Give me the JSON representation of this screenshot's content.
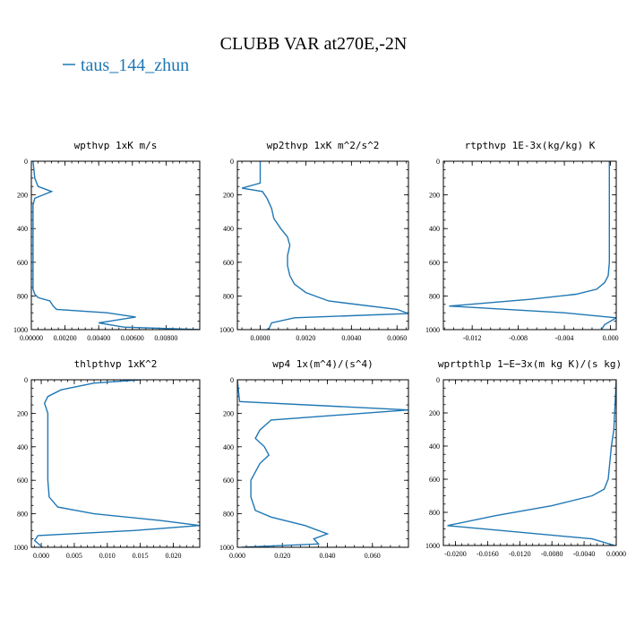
{
  "figure_title": "CLUBB VAR at270E,-2N",
  "legend_label": "taus_144_zhun",
  "colors": {
    "series": "#1f77b4",
    "axes": "#000000"
  },
  "chart_data": [
    {
      "type": "line",
      "title": "wpthvp  1xK m/s",
      "xlim": [
        0,
        0.01
      ],
      "ylim": [
        1000,
        0
      ],
      "x_ticks": [
        0,
        0.002,
        0.004,
        0.006,
        0.008
      ],
      "x_tick_labels": [
        "0.00000",
        "0.00200",
        "0.00400",
        "0.00600",
        "0.00800"
      ],
      "y_ticks": [
        0,
        200,
        400,
        600,
        800,
        1000
      ],
      "y_tick_labels": [
        "0",
        "200",
        "400",
        "600",
        "800",
        "1000"
      ],
      "series": [
        {
          "x": [
            0.0001,
            0.0002,
            0.0004,
            0.0012,
            0.0002,
            0.0001,
            0.0001,
            0.0001,
            0.0001,
            0.0001,
            0.0002,
            0.0004,
            0.0011,
            0.0013,
            0.0015,
            0.0045,
            0.0062,
            0.004,
            0.0055,
            0.01
          ],
          "y": [
            0,
            100,
            150,
            180,
            220,
            260,
            400,
            600,
            700,
            760,
            790,
            810,
            830,
            860,
            880,
            900,
            925,
            960,
            985,
            1000
          ]
        }
      ]
    },
    {
      "type": "line",
      "title": "wp2thvp  1xK m^2/s^2",
      "xlim": [
        -0.001,
        0.0065
      ],
      "ylim": [
        1000,
        0
      ],
      "x_ticks": [
        0,
        0.002,
        0.004,
        0.006
      ],
      "x_tick_labels": [
        "0.0000",
        "0.0020",
        "0.0040",
        "0.0060"
      ],
      "y_ticks": [
        0,
        200,
        400,
        600,
        800,
        1000
      ],
      "y_tick_labels": [
        "0",
        "200",
        "400",
        "600",
        "800",
        "1000"
      ],
      "series": [
        {
          "x": [
            0,
            0,
            0,
            -0.0008,
            0.0001,
            0.0003,
            0.0005,
            0.0006,
            0.0009,
            0.0012,
            0.0013,
            0.0012,
            0.0012,
            0.0013,
            0.0015,
            0.002,
            0.003,
            0.006,
            0.0065,
            0.0015,
            0.0005,
            0.0004,
            0.0003
          ],
          "y": [
            0,
            50,
            130,
            160,
            180,
            220,
            280,
            340,
            400,
            450,
            500,
            560,
            620,
            680,
            730,
            780,
            830,
            880,
            905,
            930,
            960,
            990,
            1000
          ]
        }
      ]
    },
    {
      "type": "line",
      "title": "rtpthvp  1E-3x(kg/kg) K",
      "xlim": [
        -0.0145,
        0.0005
      ],
      "ylim": [
        1000,
        0
      ],
      "x_ticks": [
        -0.012,
        -0.008,
        -0.004,
        0
      ],
      "x_tick_labels": [
        "-0.012",
        "-0.008",
        "-0.004",
        "0.000"
      ],
      "y_ticks": [
        0,
        200,
        400,
        600,
        800,
        1000
      ],
      "y_tick_labels": [
        "0",
        "200",
        "400",
        "600",
        "800",
        "1000"
      ],
      "series": [
        {
          "x": [
            -0.0001,
            -0.0001,
            -0.0001,
            -0.0001,
            -0.0002,
            -0.0005,
            -0.0012,
            -0.003,
            -0.007,
            -0.014,
            -0.004,
            0.0005,
            -0.0005,
            -0.0008
          ],
          "y": [
            0,
            200,
            400,
            600,
            680,
            720,
            760,
            790,
            820,
            860,
            900,
            930,
            970,
            1000
          ]
        }
      ]
    },
    {
      "type": "line",
      "title": "thlpthvp  1xK^2",
      "xlim": [
        -0.0015,
        0.024
      ],
      "ylim": [
        1000,
        0
      ],
      "x_ticks": [
        0,
        0.005,
        0.01,
        0.015,
        0.02
      ],
      "x_tick_labels": [
        "0.000",
        "0.005",
        "0.010",
        "0.015",
        "0.020"
      ],
      "y_ticks": [
        0,
        200,
        400,
        600,
        800,
        1000
      ],
      "y_tick_labels": [
        "0",
        "200",
        "400",
        "600",
        "800",
        "1000"
      ],
      "series": [
        {
          "x": [
            0.015,
            0.008,
            0.003,
            0.001,
            0.0005,
            0.001,
            0.001,
            0.001,
            0.001,
            0.0012,
            0.0025,
            0.008,
            0.018,
            0.024,
            0.014,
            -0.0005,
            -0.001,
            0.0002
          ],
          "y": [
            0,
            20,
            60,
            100,
            140,
            200,
            300,
            400,
            600,
            700,
            760,
            800,
            840,
            870,
            900,
            930,
            960,
            1000
          ]
        }
      ]
    },
    {
      "type": "line",
      "title": "wp4  1x(m^4)/(s^4)",
      "xlim": [
        0,
        0.076
      ],
      "ylim": [
        1000,
        0
      ],
      "x_ticks": [
        0,
        0.02,
        0.04,
        0.06
      ],
      "x_tick_labels": [
        "0.000",
        "0.020",
        "0.040",
        "0.060"
      ],
      "y_ticks": [
        0,
        200,
        400,
        600,
        800,
        1000
      ],
      "y_tick_labels": [
        "0",
        "200",
        "400",
        "600",
        "800",
        "1000"
      ],
      "series": [
        {
          "x": [
            0,
            0.001,
            0.076,
            0.015,
            0.01,
            0.008,
            0.012,
            0.014,
            0.01,
            0.008,
            0.006,
            0.006,
            0.008,
            0.015,
            0.03,
            0.04,
            0.034,
            0.036,
            0.002
          ],
          "y": [
            0,
            130,
            180,
            240,
            300,
            350,
            400,
            450,
            500,
            550,
            600,
            700,
            780,
            820,
            870,
            920,
            950,
            980,
            1000
          ]
        }
      ]
    },
    {
      "type": "line",
      "title": "wprtpthlp  1−E−3x(m kg K)/(s kg)",
      "xlim": [
        -0.0215,
        0
      ],
      "ylim": [
        1000,
        0
      ],
      "x_ticks": [
        -0.02,
        -0.016,
        -0.012,
        -0.008,
        -0.004,
        0
      ],
      "x_tick_labels": [
        "-0.0200",
        "-0.0160",
        "-0.0120",
        "-0.0080",
        "-0.0040",
        "0.0000"
      ],
      "y_ticks": [
        0,
        200,
        400,
        600,
        800,
        1000
      ],
      "y_tick_labels": [
        "0",
        "200",
        "400",
        "600",
        "800",
        "1000"
      ],
      "series": [
        {
          "x": [
            0,
            -0.0003,
            -0.0006,
            -0.0008,
            -0.001,
            -0.0015,
            -0.003,
            -0.008,
            -0.015,
            -0.021,
            -0.012,
            -0.003,
            -0.0002
          ],
          "y": [
            0,
            300,
            400,
            500,
            600,
            660,
            700,
            760,
            820,
            880,
            920,
            960,
            1000
          ]
        }
      ]
    }
  ]
}
